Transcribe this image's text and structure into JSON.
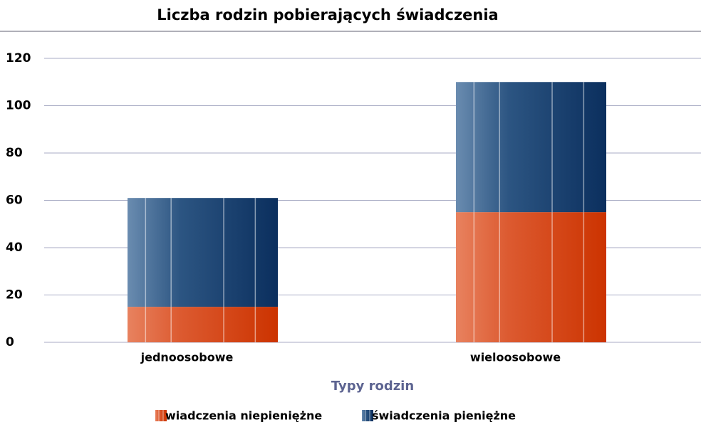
{
  "chart_data": {
    "type": "bar",
    "stacked": true,
    "title": "Liczba rodzin pobierających świadczenia",
    "x_label": "Typy rodzin",
    "categories": [
      "jednoosobowe",
      "wieloosobowe"
    ],
    "series": [
      {
        "name": "wiadczenia niepieniężne",
        "color": "#d9441c",
        "values": [
          15,
          55
        ]
      },
      {
        "name": "świadczenia pieniężne",
        "color": "#143e6e",
        "values": [
          46,
          55
        ]
      }
    ],
    "ylim": [
      0,
      120
    ],
    "yticks": [
      0,
      20,
      40,
      60,
      80,
      100,
      120
    ],
    "grid": true
  }
}
